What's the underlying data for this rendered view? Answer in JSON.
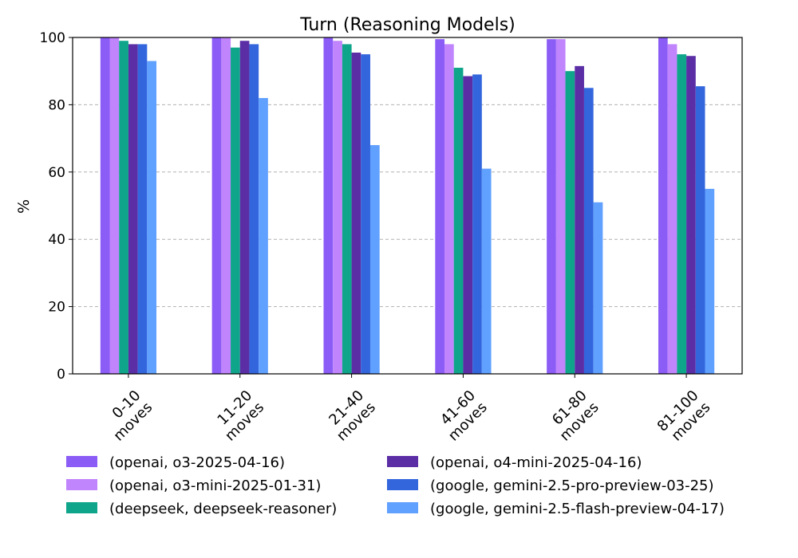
{
  "chart_data": {
    "type": "bar",
    "title": "Turn (Reasoning Models)",
    "xlabel": "",
    "ylabel": "%",
    "ylim": [
      0,
      100
    ],
    "yticks": [
      0,
      20,
      40,
      60,
      80,
      100
    ],
    "grid": "y-dashed",
    "legend_position": "bottom",
    "categories": [
      [
        "0-10",
        "moves"
      ],
      [
        "11-20",
        "moves"
      ],
      [
        "21-40",
        "moves"
      ],
      [
        "41-60",
        "moves"
      ],
      [
        "61-80",
        "moves"
      ],
      [
        "81-100",
        "moves"
      ]
    ],
    "series": [
      {
        "name": "(openai, o3-2025-04-16)",
        "color": "#8b5cf6",
        "values": [
          100,
          100,
          100,
          99.5,
          99.5,
          100
        ]
      },
      {
        "name": "(openai, o3-mini-2025-01-31)",
        "color": "#c084fc",
        "values": [
          100,
          100,
          99,
          98,
          99.5,
          98
        ]
      },
      {
        "name": "(deepseek, deepseek-reasoner)",
        "color": "#0ea58a",
        "values": [
          99,
          97,
          98,
          91,
          90,
          95
        ]
      },
      {
        "name": "(openai, o4-mini-2025-04-16)",
        "color": "#5b2ea6",
        "values": [
          98,
          99,
          95.5,
          88.5,
          91.5,
          94.5
        ]
      },
      {
        "name": "(google, gemini-2.5-pro-preview-03-25)",
        "color": "#3366dd",
        "values": [
          98,
          98,
          95,
          89,
          85,
          85.5
        ]
      },
      {
        "name": "(google, gemini-2.5-flash-preview-04-17)",
        "color": "#60a0ff",
        "values": [
          93,
          82,
          68,
          61,
          51,
          55
        ]
      }
    ]
  }
}
